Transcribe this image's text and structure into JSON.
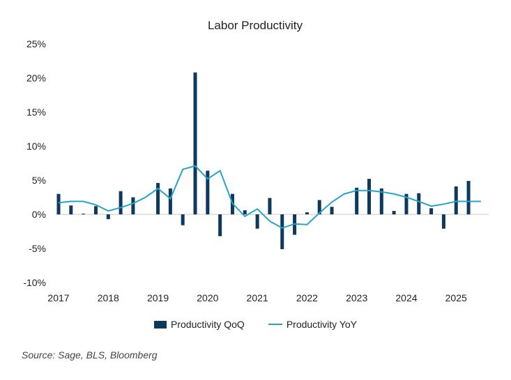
{
  "source": "Source: Sage, BLS, Bloomberg",
  "colors": {
    "bar": "#0d3a5c",
    "line": "#27a3c8",
    "axis": "#c8c8c8"
  },
  "chart_data": {
    "type": "bar",
    "title": "Labor Productivity",
    "xlabel": "",
    "ylabel": "",
    "ylim": [
      -10,
      25
    ],
    "y_ticks": [
      "-10%",
      "-5%",
      "0%",
      "5%",
      "10%",
      "15%",
      "20%",
      "25%"
    ],
    "y_tick_values": [
      -10,
      -5,
      0,
      5,
      10,
      15,
      20,
      25
    ],
    "x_ticks": [
      "2017",
      "2018",
      "2019",
      "2020",
      "2021",
      "2022",
      "2023",
      "2024",
      "2025"
    ],
    "x_tick_values": [
      2017,
      2018,
      2019,
      2020,
      2021,
      2022,
      2023,
      2024,
      2025
    ],
    "xlim": [
      2017,
      2025.6
    ],
    "legend_position": "bottom",
    "series": [
      {
        "name": "Productivity QoQ",
        "type": "bar",
        "x": [
          2017.0,
          2017.25,
          2017.5,
          2017.75,
          2018.0,
          2018.25,
          2018.5,
          2018.75,
          2019.0,
          2019.25,
          2019.5,
          2019.75,
          2020.0,
          2020.25,
          2020.5,
          2020.75,
          2021.0,
          2021.25,
          2021.5,
          2021.75,
          2022.0,
          2022.25,
          2022.5,
          2022.75,
          2023.0,
          2023.25,
          2023.5,
          2023.75,
          2024.0,
          2024.25,
          2024.5,
          2024.75,
          2025.0,
          2025.25,
          2025.5
        ],
        "values": [
          3.0,
          1.3,
          0.1,
          1.2,
          -0.7,
          3.4,
          2.5,
          0.0,
          4.6,
          3.8,
          -1.6,
          20.8,
          6.4,
          -3.2,
          3.0,
          0.6,
          -2.1,
          2.4,
          -5.1,
          -3.0,
          0.3,
          2.1,
          1.1,
          0.0,
          3.9,
          5.2,
          3.8,
          0.5,
          3.0,
          3.1,
          0.9,
          -2.1,
          4.1,
          4.9,
          0.0
        ]
      },
      {
        "name": "Productivity YoY",
        "type": "line",
        "x": [
          2017.0,
          2017.25,
          2017.5,
          2017.75,
          2018.0,
          2018.25,
          2018.5,
          2018.75,
          2019.0,
          2019.25,
          2019.5,
          2019.75,
          2020.0,
          2020.25,
          2020.5,
          2020.75,
          2021.0,
          2021.25,
          2021.5,
          2021.75,
          2022.0,
          2022.25,
          2022.5,
          2022.75,
          2023.0,
          2023.25,
          2023.5,
          2023.75,
          2024.0,
          2024.25,
          2024.5,
          2024.75,
          2025.0,
          2025.25,
          2025.5
        ],
        "values": [
          1.7,
          1.9,
          1.9,
          1.4,
          0.5,
          1.0,
          1.6,
          2.5,
          3.8,
          2.3,
          6.6,
          7.1,
          5.2,
          6.4,
          1.6,
          -0.3,
          0.8,
          -1.0,
          -2.0,
          -1.4,
          -1.5,
          0.2,
          1.8,
          3.0,
          3.5,
          3.5,
          3.3,
          3.0,
          2.5,
          1.9,
          1.2,
          1.5,
          1.9,
          1.9,
          1.9
        ]
      }
    ]
  }
}
